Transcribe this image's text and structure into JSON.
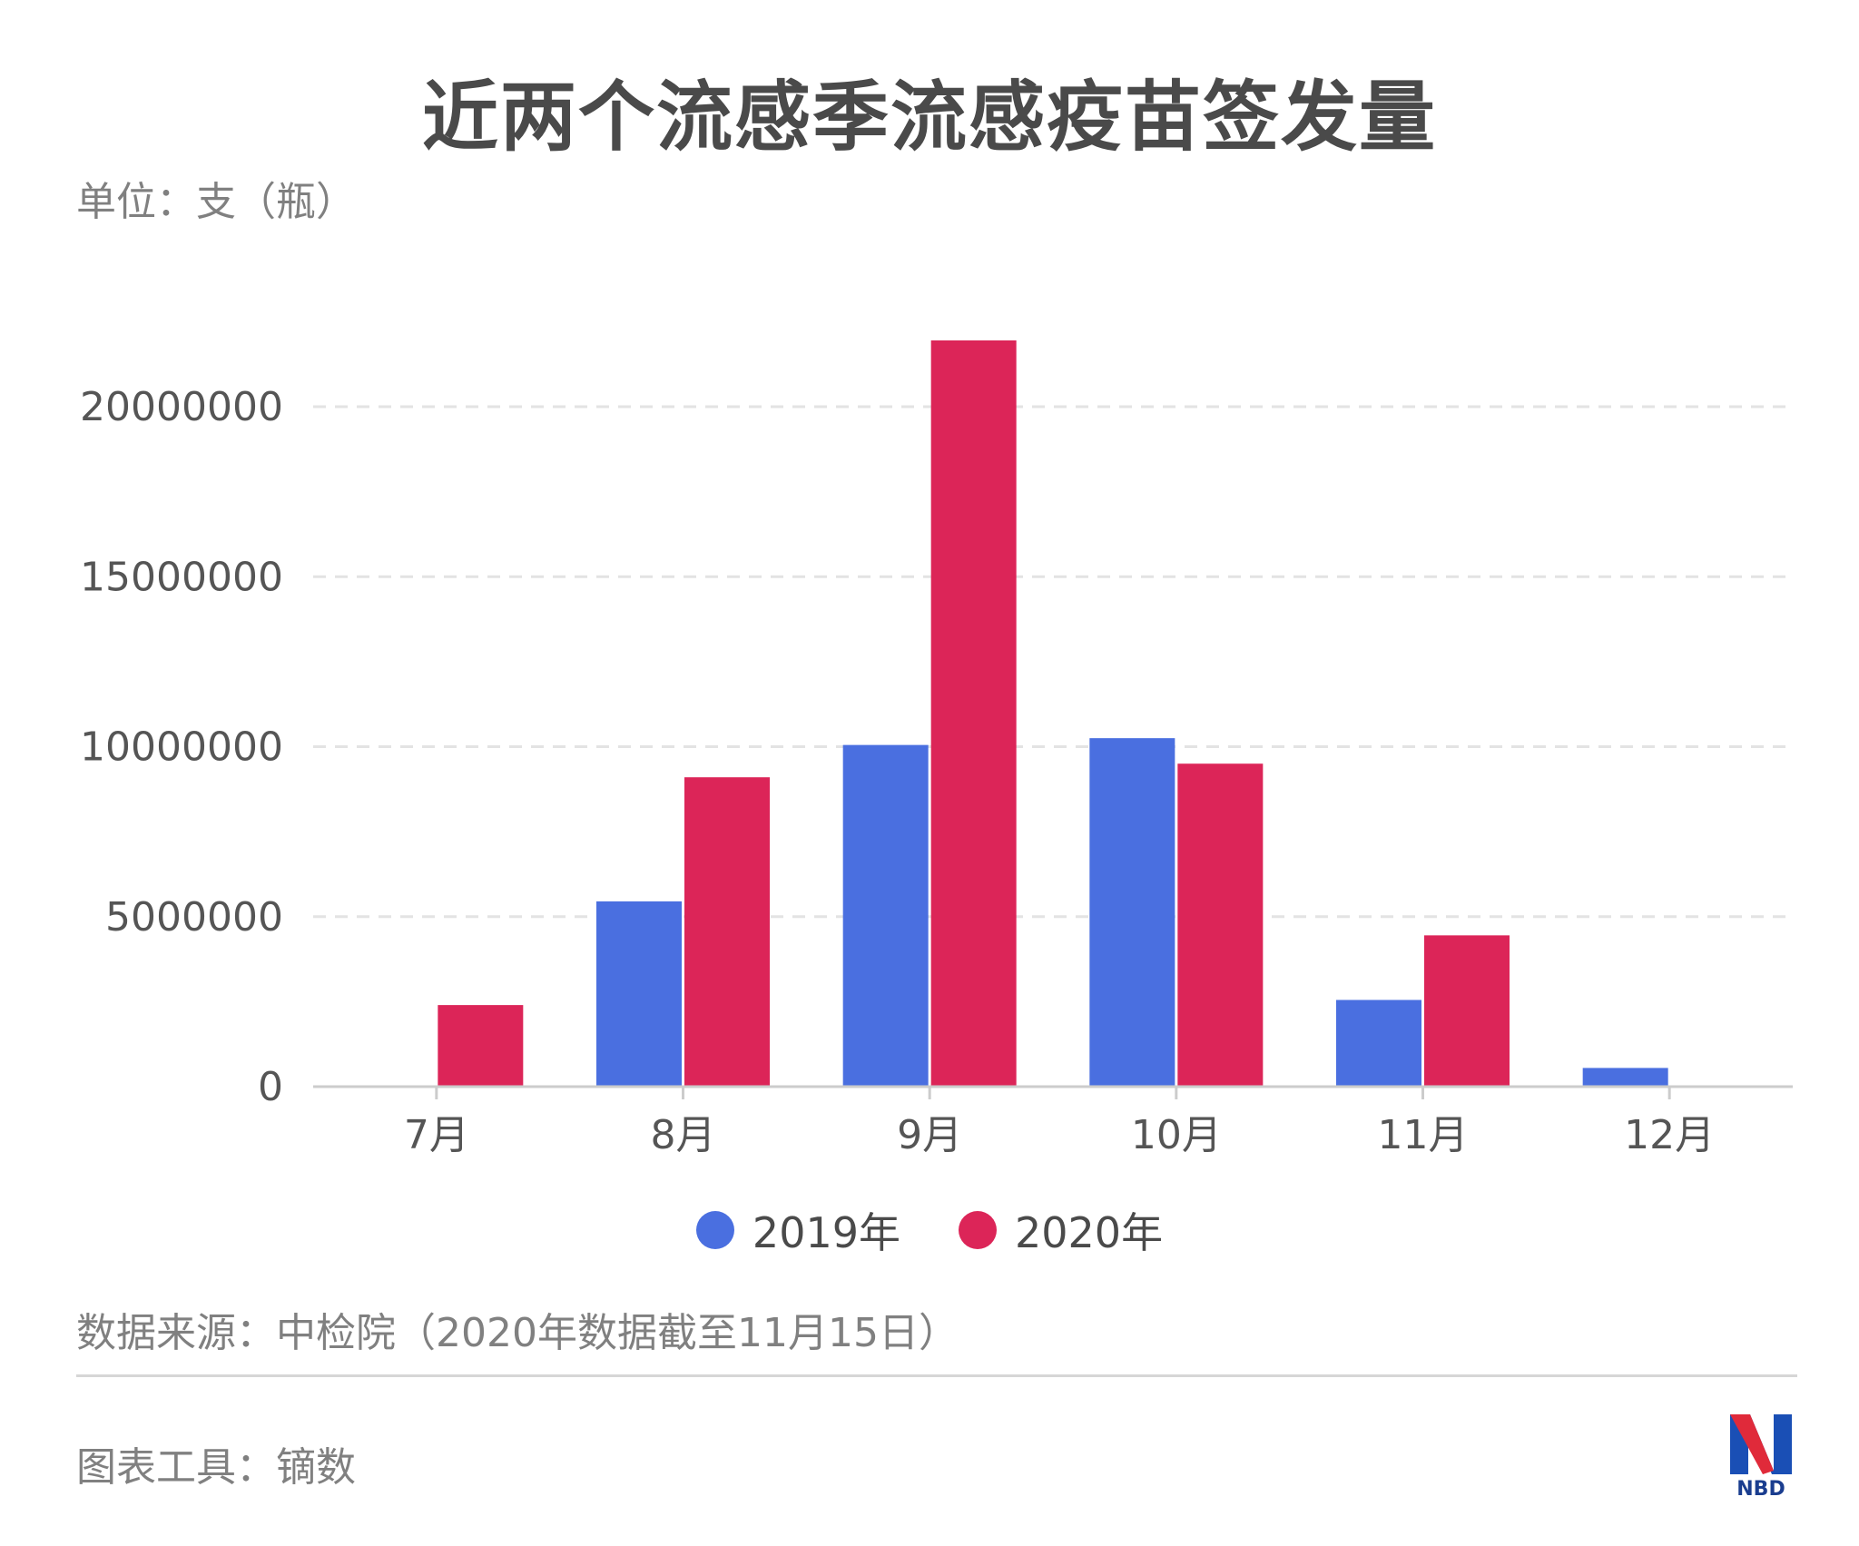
{
  "title": "近两个流感季流感疫苗签发量",
  "unit_label": "单位：支（瓶）",
  "source": "数据来源：中检院（2020年数据截至11月15日）",
  "tool": "图表工具：镝数",
  "logo_text": "NBD",
  "chart_data": {
    "type": "bar",
    "title": "近两个流感季流感疫苗签发量",
    "ylabel": "单位：支（瓶）",
    "xlabel": "",
    "categories": [
      "7月",
      "8月",
      "9月",
      "10月",
      "11月",
      "12月"
    ],
    "series": [
      {
        "name": "2019年",
        "color": "#4a6fe0",
        "values": [
          0,
          5450000,
          10050000,
          10250000,
          2550000,
          550000
        ]
      },
      {
        "name": "2020年",
        "color": "#dc2558",
        "values": [
          2400000,
          9100000,
          21950000,
          9500000,
          4450000,
          0
        ]
      }
    ],
    "ylim": [
      0,
      22000000
    ],
    "yticks": [
      0,
      5000000,
      10000000,
      15000000,
      20000000
    ],
    "ytick_labels": [
      "0",
      "5000000",
      "10000000",
      "15000000",
      "20000000"
    ],
    "grid": true,
    "legend_position": "bottom-center"
  }
}
